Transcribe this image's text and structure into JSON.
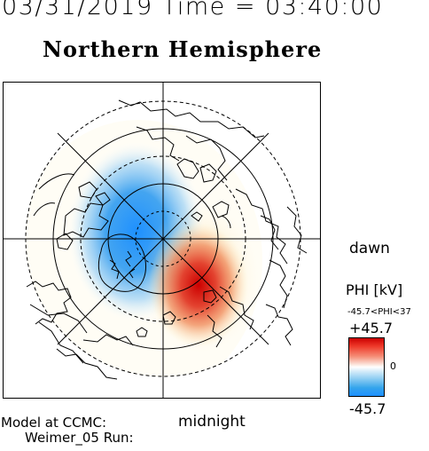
{
  "header": {
    "datetime": "03/31/2019 Time = 03:40:00",
    "title": "Northern Hemisphere"
  },
  "map": {
    "hemisphere": "north",
    "projection": "polar",
    "dawn_label": "dawn",
    "midnight_label": "midnight",
    "colors": {
      "positive": "#cc0000",
      "negative": "#1e90ff",
      "neutral": "#ffffff",
      "coastline": "#000000"
    }
  },
  "legend": {
    "quantity": "PHI [kV]",
    "range_text": "-45.7<PHI<37",
    "max_label": "+45.7",
    "zero_label": "0",
    "min_label": "-45.7"
  },
  "footer": {
    "model_line1": "Model at CCMC:",
    "model_line2": "Weimer_05 Run:"
  }
}
